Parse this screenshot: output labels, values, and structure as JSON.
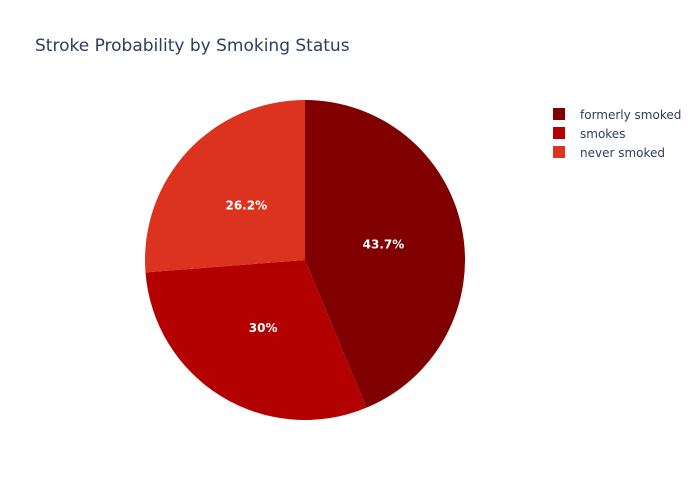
{
  "chart_data": {
    "type": "pie",
    "title": "Stroke Probability by Smoking Status",
    "slices": [
      {
        "label": "formerly smoked",
        "value": 43.7,
        "display": "43.7%",
        "color": "#800000"
      },
      {
        "label": "smokes",
        "value": 30.0,
        "display": "30%",
        "color": "#b30000"
      },
      {
        "label": "never smoked",
        "value": 26.2,
        "display": "26.2%",
        "color": "#db3320"
      }
    ],
    "legend_position": "top-right",
    "sort_direction": "clockwise",
    "start_angle": "12 o'clock"
  }
}
